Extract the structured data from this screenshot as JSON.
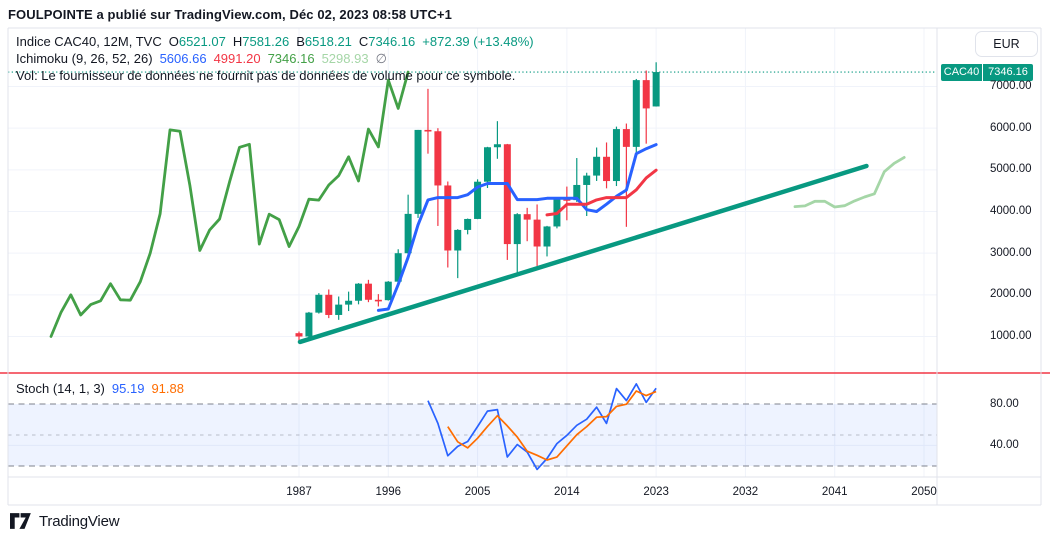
{
  "header": {
    "title": "FOULPOINTE a publié sur TradingView.com, Déc 02, 2023 08:58 UTC+1"
  },
  "axis": {
    "currency": "EUR",
    "symbol_tag": "CAC40",
    "price_tag": "7346.16",
    "price_labels": [
      "7000.00",
      "6000.00",
      "5000.00",
      "4000.00",
      "3000.00",
      "2000.00",
      "1000.00"
    ],
    "stoch_labels": [
      "80.00",
      "40.00"
    ],
    "year_labels": [
      "1987",
      "1996",
      "2005",
      "2014",
      "2023",
      "2032",
      "2041",
      "2050"
    ]
  },
  "legend": {
    "series_title": "Indice CAC40, 12M, TVC",
    "open_label": "O",
    "open": "6521.07",
    "high_label": "H",
    "high": "7581.26",
    "low_label": "B",
    "low": "6518.21",
    "close_label": "C",
    "close": "7346.16",
    "change": "+872.39 (+13.48%)",
    "ichimoku_title": "Ichimoku (9, 26, 52, 26)",
    "ichimoku_conversion": "5606.66",
    "ichimoku_base": "4991.20",
    "ichimoku_lagging": "7346.16",
    "ichimoku_lead": "5298.93",
    "ichimoku_empty": "∅",
    "vol_note": "Vol: Le fournisseur de données ne fournit pas de données de volume pour ce symbole."
  },
  "stoch": {
    "title": "Stoch (14, 1, 3)",
    "k": "95.19",
    "d": "91.88"
  },
  "footer": {
    "brand": "TradingView"
  },
  "colors": {
    "up": "#089981",
    "down": "#f23645",
    "tenkan": "#2962ff",
    "kijun": "#f23645",
    "chikou": "#43a047",
    "lead": "#a5d6a7",
    "trend": "#089981",
    "stoch_k": "#2962ff",
    "stoch_d": "#ff6d00",
    "band": "#787b86",
    "grid": "#f0f3fa",
    "border": "#e0e3eb",
    "text": "#131722",
    "separator": "#f23645",
    "stoch_fill": "rgba(41,98,255,0.08)",
    "current_price_line": "#089981"
  },
  "chart_data": {
    "type": "candlestick",
    "symbol": "CAC40",
    "timeframe": "12M",
    "columns": [
      "year",
      "open",
      "high",
      "low",
      "close"
    ],
    "candles": [
      [
        1987,
        1080,
        1120,
        893,
        1000
      ],
      [
        1988,
        1000,
        1590,
        960,
        1573
      ],
      [
        1989,
        1573,
        2040,
        1550,
        2001
      ],
      [
        1990,
        2001,
        2129,
        1441,
        1517
      ],
      [
        1991,
        1517,
        1960,
        1400,
        1765
      ],
      [
        1992,
        1765,
        2077,
        1611,
        1858
      ],
      [
        1993,
        1858,
        2281,
        1772,
        2268
      ],
      [
        1994,
        2268,
        2360,
        1824,
        1881
      ],
      [
        1995,
        1881,
        2017,
        1721,
        1872
      ],
      [
        1996,
        1872,
        2330,
        1862,
        2316
      ],
      [
        1997,
        2316,
        3094,
        2227,
        2999
      ],
      [
        1998,
        2999,
        4404,
        2881,
        3943
      ],
      [
        1999,
        3943,
        5958,
        3845,
        5958
      ],
      [
        2000,
        5958,
        6944,
        5388,
        5926
      ],
      [
        2001,
        5926,
        5999,
        3653,
        4625
      ],
      [
        2002,
        4625,
        4720,
        2656,
        3064
      ],
      [
        2003,
        3064,
        3575,
        2401,
        3558
      ],
      [
        2004,
        3558,
        3831,
        3452,
        3821
      ],
      [
        2005,
        3821,
        4772,
        3816,
        4715
      ],
      [
        2006,
        4715,
        5552,
        4564,
        5542
      ],
      [
        2007,
        5542,
        6168,
        5265,
        5614
      ],
      [
        2008,
        5614,
        5622,
        2838,
        3218
      ],
      [
        2009,
        3218,
        3960,
        2465,
        3936
      ],
      [
        2010,
        3936,
        4088,
        3287,
        3805
      ],
      [
        2011,
        3805,
        4169,
        2693,
        3160
      ],
      [
        2012,
        3160,
        3655,
        2922,
        3641
      ],
      [
        2013,
        3641,
        4321,
        3595,
        4296
      ],
      [
        2014,
        4296,
        4598,
        3789,
        4273
      ],
      [
        2015,
        4273,
        5283,
        4230,
        4637
      ],
      [
        2016,
        4637,
        4930,
        3892,
        4862
      ],
      [
        2017,
        4862,
        5536,
        4733,
        5313
      ],
      [
        2018,
        5313,
        5657,
        4556,
        4731
      ],
      [
        2019,
        4731,
        6037,
        4611,
        5978
      ],
      [
        2020,
        5978,
        6111,
        3632,
        5551
      ],
      [
        2021,
        5551,
        7181,
        5306,
        7153
      ],
      [
        2022,
        7153,
        7384,
        5628,
        6474
      ],
      [
        2023,
        6521.07,
        7581.26,
        6518.21,
        7346.16
      ]
    ],
    "indicators": {
      "ichimoku": {
        "conversion": 9,
        "base": 26,
        "lead2": 52,
        "displacement": 26
      },
      "stoch": {
        "k": 14,
        "k_smooth": 1,
        "d": 3,
        "bands": [
          80,
          50,
          20
        ]
      }
    },
    "trendline": {
      "year1": 1987.1,
      "price1": 870,
      "year2": 2044.2,
      "price2": 5092
    },
    "current_price": 7346.16,
    "x_tick_years": [
      1987,
      1996,
      2005,
      2014,
      2023,
      2032,
      2041,
      2050
    ],
    "price_grid": [
      1000,
      2000,
      3000,
      4000,
      5000,
      6000,
      7000
    ]
  }
}
